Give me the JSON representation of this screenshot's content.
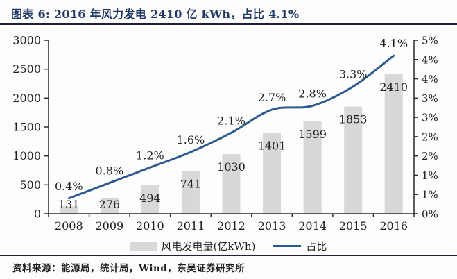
{
  "header": {
    "title": "图表 6: 2016 年风力发电 2410 亿 kWh，占比 4.1%"
  },
  "footer": {
    "source": "资料来源：能源局，统计局，Wind，东吴证券研究所"
  },
  "legend": {
    "bar_label": "风电发电量(亿kWh)",
    "line_label": "占比"
  },
  "colors": {
    "bar": "#d8d8d8",
    "line": "#2d5a8e",
    "title": "#1f3864",
    "axis": "#2a2a2a",
    "text": "#1d1d1d",
    "rule": "#1b2233"
  },
  "chart_data": {
    "type": "bar+line combo",
    "title": "2016 年风力发电 2410 亿 kWh，占比 4.1%",
    "categories": [
      "2008",
      "2009",
      "2010",
      "2011",
      "2012",
      "2013",
      "2014",
      "2015",
      "2016"
    ],
    "series": [
      {
        "name": "风电发电量(亿kWh)",
        "type": "bar",
        "axis": "left",
        "values": [
          131,
          276,
          494,
          741,
          1030,
          1401,
          1599,
          1853,
          2410
        ],
        "data_labels": [
          "131",
          "276",
          "494",
          "741",
          "1030",
          "1401",
          "1599",
          "1853",
          "2410"
        ]
      },
      {
        "name": "占比",
        "type": "line",
        "axis": "right",
        "values": [
          0.4,
          0.8,
          1.2,
          1.6,
          2.1,
          2.7,
          2.8,
          3.3,
          4.1
        ],
        "data_labels": [
          "0.4%",
          "0.8%",
          "1.2%",
          "1.6%",
          "2.1%",
          "2.7%",
          "2.8%",
          "3.3%",
          "4.1%"
        ]
      }
    ],
    "left_axis": {
      "min": 0,
      "max": 3000,
      "step": 500,
      "tick_labels_bottom_to_top": [
        "0",
        "500",
        "1000",
        "1500",
        "2000",
        "2500",
        "3000"
      ]
    },
    "right_axis": {
      "min": 0,
      "max_actual": 4.5,
      "tick_step": 0.5,
      "tick_labels_bottom_to_top": [
        "0%",
        "1%",
        "1%",
        "2%",
        "2%",
        "3%",
        "3%",
        "4%",
        "4%",
        "5%"
      ]
    },
    "grid": false,
    "legend_position": "bottom"
  }
}
